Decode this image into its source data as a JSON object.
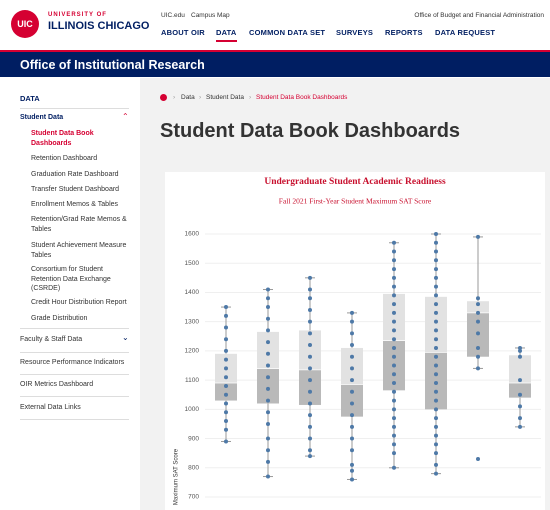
{
  "header": {
    "logo_mark": "UIC",
    "logo_line1": "UNIVERSITY OF",
    "logo_line2": "ILLINOIS CHICAGO",
    "utility_links": [
      "UIC.edu",
      "Campus Map"
    ],
    "office_link": "Office of Budget and Financial Administration",
    "nav": [
      "ABOUT OIR",
      "DATA",
      "COMMON DATA SET",
      "SURVEYS",
      "REPORTS",
      "DATA REQUEST"
    ]
  },
  "banner": "Office of Institutional Research",
  "sidebar": {
    "heading": "DATA",
    "student_data": "Student Data",
    "student_items": [
      "Student Data Book Dashboards",
      "Retention Dashboard",
      "Graduation Rate Dashboard",
      "Transfer Student Dashboard",
      "Enrollment Memos & Tables",
      "Retention/Grad Rate Memos & Tables",
      "Student Achievement Measure Tables",
      "Consortium for Student Retention Data Exchange (CSRDE)",
      "Credit Hour Distribution Report",
      "Grade Distribution"
    ],
    "other_items": [
      "Faculty & Staff Data",
      "Resource Performance Indicators",
      "OIR Metrics Dashboard",
      "External Data Links"
    ]
  },
  "breadcrumb": [
    "Data",
    "Student Data",
    "Student Data Book Dashboards"
  ],
  "page_title": "Student Data Book Dashboards",
  "chart_data": {
    "type": "box",
    "title": "Undergraduate Student Academic Readiness",
    "subtitle": "Fall 2021 First-Year Student Maximum SAT Score",
    "y_label": "Maximum SAT Score",
    "ylim": [
      700,
      1600
    ],
    "yticks": [
      700,
      800,
      900,
      1000,
      1100,
      1200,
      1300,
      1400,
      1500,
      1600
    ],
    "grid": true,
    "box_color": "#e2e2e2",
    "lower_box_color": "#b9b9b9",
    "point_color": "#4e79a7",
    "groups": [
      {
        "min": 890,
        "q1": 1030,
        "median": 1090,
        "q3": 1190,
        "max": 1350,
        "points": [
          1350,
          1320,
          1280,
          1240,
          1200,
          1170,
          1140,
          1110,
          1080,
          1050,
          1020,
          990,
          960,
          930,
          890
        ]
      },
      {
        "min": 770,
        "q1": 1020,
        "median": 1140,
        "q3": 1265,
        "max": 1410,
        "points": [
          1410,
          1380,
          1350,
          1310,
          1270,
          1230,
          1190,
          1150,
          1110,
          1070,
          1030,
          990,
          950,
          900,
          860,
          820,
          770
        ]
      },
      {
        "min": 840,
        "q1": 1015,
        "median": 1135,
        "q3": 1270,
        "max": 1450,
        "points": [
          1450,
          1410,
          1380,
          1340,
          1300,
          1260,
          1220,
          1180,
          1140,
          1100,
          1060,
          1020,
          980,
          940,
          900,
          860,
          840
        ]
      },
      {
        "min": 760,
        "q1": 975,
        "median": 1085,
        "q3": 1210,
        "max": 1330,
        "points": [
          1330,
          1300,
          1260,
          1220,
          1180,
          1140,
          1100,
          1060,
          1020,
          980,
          940,
          900,
          860,
          810,
          790,
          760
        ]
      },
      {
        "min": 800,
        "q1": 1065,
        "median": 1235,
        "q3": 1395,
        "max": 1570,
        "points": [
          1570,
          1540,
          1510,
          1480,
          1450,
          1420,
          1390,
          1360,
          1330,
          1300,
          1270,
          1240,
          1210,
          1180,
          1150,
          1120,
          1090,
          1060,
          1030,
          1000,
          970,
          940,
          910,
          880,
          850,
          800
        ]
      },
      {
        "min": 780,
        "q1": 1000,
        "median": 1195,
        "q3": 1385,
        "max": 1600,
        "points": [
          1600,
          1570,
          1540,
          1510,
          1480,
          1450,
          1420,
          1390,
          1360,
          1330,
          1300,
          1270,
          1240,
          1210,
          1180,
          1150,
          1120,
          1090,
          1060,
          1030,
          1000,
          970,
          940,
          910,
          880,
          850,
          810,
          780
        ]
      },
      {
        "min": 1140,
        "q1": 1180,
        "median": 1330,
        "q3": 1370,
        "max": 1590,
        "points": [
          1590,
          1380,
          1360,
          1330,
          1300,
          1260,
          1210,
          1180,
          1140,
          830
        ]
      },
      {
        "min": 940,
        "q1": 1040,
        "median": 1090,
        "q3": 1185,
        "max": 1210,
        "points": [
          1210,
          1200,
          1180,
          1100,
          1050,
          1010,
          970,
          940
        ]
      }
    ]
  }
}
